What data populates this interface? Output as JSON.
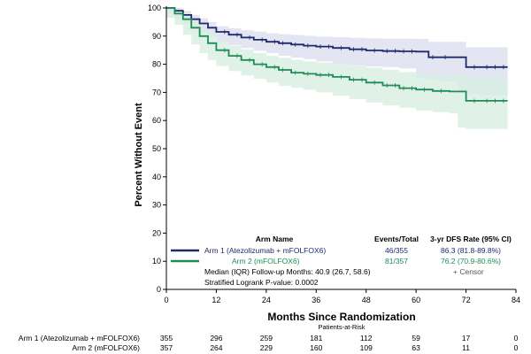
{
  "colors": {
    "arm1": "#1f2a6b",
    "arm1_band": "#d9dcef",
    "arm2": "#1e8c57",
    "arm2_band": "#d5ede0"
  },
  "chart_data": {
    "type": "line",
    "title": "",
    "xlabel": "Months Since Randomization",
    "ylabel": "Percent Without Event",
    "xlim": [
      0,
      84
    ],
    "ylim": [
      0,
      100
    ],
    "x_ticks": [
      0,
      12,
      24,
      36,
      48,
      60,
      72,
      84
    ],
    "y_ticks": [
      0,
      10,
      20,
      30,
      40,
      50,
      60,
      70,
      80,
      90,
      100
    ],
    "grid": false,
    "series": [
      {
        "name": "Arm 1 (Atezolizumab + mFOLFOX6)",
        "color_key": "arm1",
        "x": [
          0,
          2,
          4,
          6,
          8,
          10,
          12,
          15,
          18,
          21,
          24,
          27,
          30,
          33,
          36,
          40,
          44,
          48,
          52,
          56,
          60,
          63,
          66,
          70,
          72,
          76,
          80,
          82
        ],
        "y": [
          100,
          99,
          97.5,
          96,
          94.5,
          93,
          91.5,
          90.5,
          89.5,
          88.7,
          88,
          87.5,
          87,
          86.6,
          86.3,
          85.8,
          85.3,
          84.9,
          84.7,
          84.6,
          84.5,
          82.5,
          82.5,
          82.5,
          79,
          79,
          79,
          79
        ],
        "ci_lower": [
          100,
          98,
          96,
          94.5,
          92.5,
          91,
          89.5,
          88,
          86.8,
          85.8,
          84.8,
          84,
          83,
          82.4,
          81.8,
          81,
          80.2,
          79.6,
          79.2,
          79,
          78.5,
          75,
          74.5,
          74,
          70,
          69.5,
          69,
          69
        ],
        "ci_upper": [
          100,
          100,
          99,
          97.5,
          96.3,
          95,
          93.5,
          92.8,
          92.1,
          91.6,
          91,
          90.7,
          90.4,
          90.1,
          89.8,
          89.6,
          89.4,
          89.2,
          89.1,
          89.1,
          89,
          88,
          88,
          88,
          86,
          86,
          86,
          86
        ]
      },
      {
        "name": "Arm 2 (mFOLFOX6)",
        "color_key": "arm2",
        "x": [
          0,
          2,
          4,
          6,
          8,
          10,
          12,
          15,
          18,
          21,
          24,
          27,
          30,
          33,
          36,
          40,
          44,
          48,
          52,
          56,
          60,
          64,
          68,
          70,
          72,
          76,
          80,
          82
        ],
        "y": [
          100,
          98,
          96,
          93,
          90,
          87.5,
          85,
          83,
          81.5,
          80,
          79,
          78,
          77,
          76.6,
          76.2,
          75.5,
          74.5,
          73.5,
          72.5,
          71.5,
          71,
          70.5,
          70.3,
          70.3,
          67,
          67,
          67,
          67
        ],
        "ci_lower": [
          100,
          96.5,
          94,
          90.5,
          87,
          84,
          81.5,
          79.4,
          77.6,
          76,
          74.8,
          73.5,
          72.3,
          71.6,
          70.9,
          70,
          68.8,
          67.6,
          66.4,
          65.3,
          64.5,
          63.5,
          63,
          62.5,
          57.5,
          57,
          57,
          57
        ],
        "ci_upper": [
          100,
          99.5,
          98,
          95.5,
          93,
          91,
          88.5,
          86.6,
          85.3,
          84,
          83,
          82.3,
          81.5,
          81,
          80.6,
          80.2,
          79.5,
          78.8,
          78,
          77.2,
          76.8,
          76.5,
          76.5,
          76.5,
          75.5,
          75.5,
          75.5,
          75.5
        ]
      }
    ],
    "censor_x": {
      "arm1": [
        14,
        17,
        20,
        23,
        26,
        28,
        31,
        34,
        37,
        39,
        42,
        45,
        47,
        50,
        53,
        55,
        57,
        59,
        64,
        67,
        74,
        77,
        79,
        81
      ],
      "arm2": [
        14,
        17,
        20,
        23,
        26,
        28,
        31,
        34,
        37,
        39,
        42,
        45,
        47,
        50,
        53,
        55,
        57,
        59,
        62,
        66,
        74,
        77,
        79,
        81
      ]
    }
  },
  "legend": {
    "header_arm": "Arm Name",
    "header_events": "Events/Total",
    "header_rate": "3-yr DFS Rate (95% CI)",
    "rows": [
      {
        "arm": "Arm 1 (Atezolizumab + mFOLFOX6)",
        "events": "46/355",
        "rate": "86.3 (81.8-89.8%)",
        "color_key": "arm1"
      },
      {
        "arm": "Arm 2 (mFOLFOX6)",
        "events": "81/357",
        "rate": "76.2 (70.9-80.6%)",
        "color_key": "arm2"
      }
    ],
    "censor_label": "+  Censor",
    "followup": "Median (IQR) Follow-up Months: 40.9 (26.7, 58.6)",
    "pvalue": "Stratified Logrank P-value: 0.0002"
  },
  "risk_table": {
    "title": "Patients-at-Risk",
    "rows": [
      {
        "label": "Arm 1 (Atezolizumab + mFOLFOX6)",
        "values": [
          355,
          296,
          259,
          181,
          112,
          59,
          17,
          0
        ]
      },
      {
        "label": "Arm 2 (mFOLFOX6)",
        "values": [
          357,
          264,
          229,
          160,
          109,
          63,
          11,
          0
        ]
      }
    ]
  }
}
